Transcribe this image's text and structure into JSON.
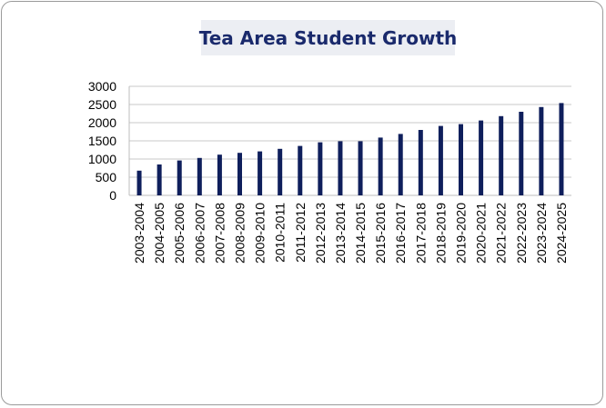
{
  "chart_data": {
    "type": "bar",
    "title": "Tea Area Student Growth",
    "xlabel": "",
    "ylabel": "",
    "ylim": [
      0,
      3000
    ],
    "y_ticks": [
      "0",
      "500",
      "1000",
      "1500",
      "2000",
      "2500",
      "3000"
    ],
    "grid": true,
    "legend": "none",
    "bar_color": "#0f1f5c",
    "title_bg_color": "#eceef3",
    "title_color": "#1a2a6c",
    "categories": [
      "2003-2004",
      "2004-2005",
      "2005-2006",
      "2006-2007",
      "2007-2008",
      "2008-2009",
      "2009-2010",
      "2010-2011",
      "2011-2012",
      "2012-2013",
      "2013-2014",
      "2014-2015",
      "2015-2016",
      "2016-2017",
      "2017-2018",
      "2018-2019",
      "2019-2020",
      "2020-2021",
      "2021-2022",
      "2022-2023",
      "2023-2024",
      "2024-2025"
    ],
    "values": [
      680,
      850,
      960,
      1030,
      1120,
      1170,
      1210,
      1280,
      1360,
      1460,
      1490,
      1490,
      1590,
      1690,
      1800,
      1910,
      1960,
      2060,
      2180,
      2300,
      2430,
      2540
    ]
  }
}
